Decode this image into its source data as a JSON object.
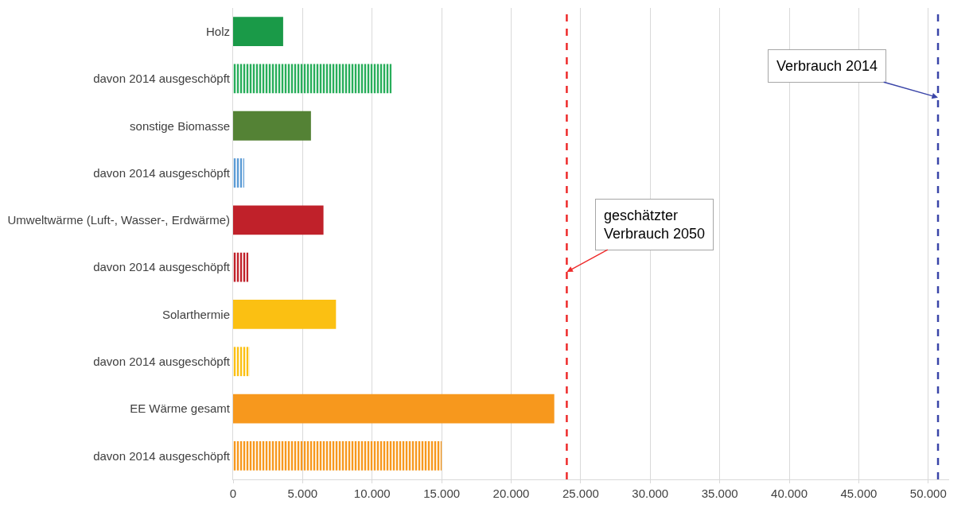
{
  "chart_data": {
    "type": "bar",
    "orientation": "horizontal",
    "categories": [
      "Holz",
      "davon 2014 ausgeschöpft",
      "sonstige Biomasse",
      "davon 2014 ausgeschöpft",
      "Umweltwärme (Luft-, Wasser-, Erdwärme)",
      "davon 2014 ausgeschöpft",
      "Solarthermie",
      "davon 2014 ausgeschöpft",
      "EE Wärme gesamt",
      "davon 2014 ausgeschöpft"
    ],
    "series": [
      {
        "values": [
          3600,
          null,
          5600,
          null,
          6500,
          null,
          7400,
          null,
          23100,
          null
        ],
        "colors": [
          "#1a9a48",
          null,
          "#548235",
          null,
          "#c0212a",
          null,
          "#fbc012",
          null,
          "#f7981d",
          null
        ]
      },
      {
        "values": [
          null,
          11400,
          null,
          800,
          null,
          1100,
          null,
          1200,
          null,
          15000
        ],
        "colors": [
          null,
          "#27ad5a",
          null,
          "#5b9bd5",
          null,
          "#c0212a",
          null,
          "#fbc012",
          null,
          "#f7981d"
        ]
      }
    ],
    "xlim": [
      0,
      51500
    ],
    "xticks": [
      0,
      {
        "value": 5000,
        "label": "5.000"
      },
      {
        "value": 10000,
        "label": "10.000"
      },
      {
        "value": 15000,
        "label": "15.000"
      },
      {
        "value": 20000,
        "label": "20.000"
      },
      {
        "value": 25000,
        "label": "25.000"
      },
      {
        "value": 30000,
        "label": "30.000"
      },
      {
        "value": 35000,
        "label": "35.000"
      },
      {
        "value": 40000,
        "label": "40.000"
      },
      {
        "value": 45000,
        "label": "45.000"
      },
      {
        "value": 50000,
        "label": "50.000"
      }
    ],
    "grid": "x",
    "ref_lines": [
      {
        "axis": "x",
        "value": 24000,
        "label": "geschätzter\nVerbrauch 2050",
        "color": "#ee2a2a",
        "line_style": "dashed"
      },
      {
        "axis": "x",
        "value": 50700,
        "label": "Verbrauch 2014",
        "color": "#3a45a8",
        "line_style": "dashed"
      }
    ]
  }
}
